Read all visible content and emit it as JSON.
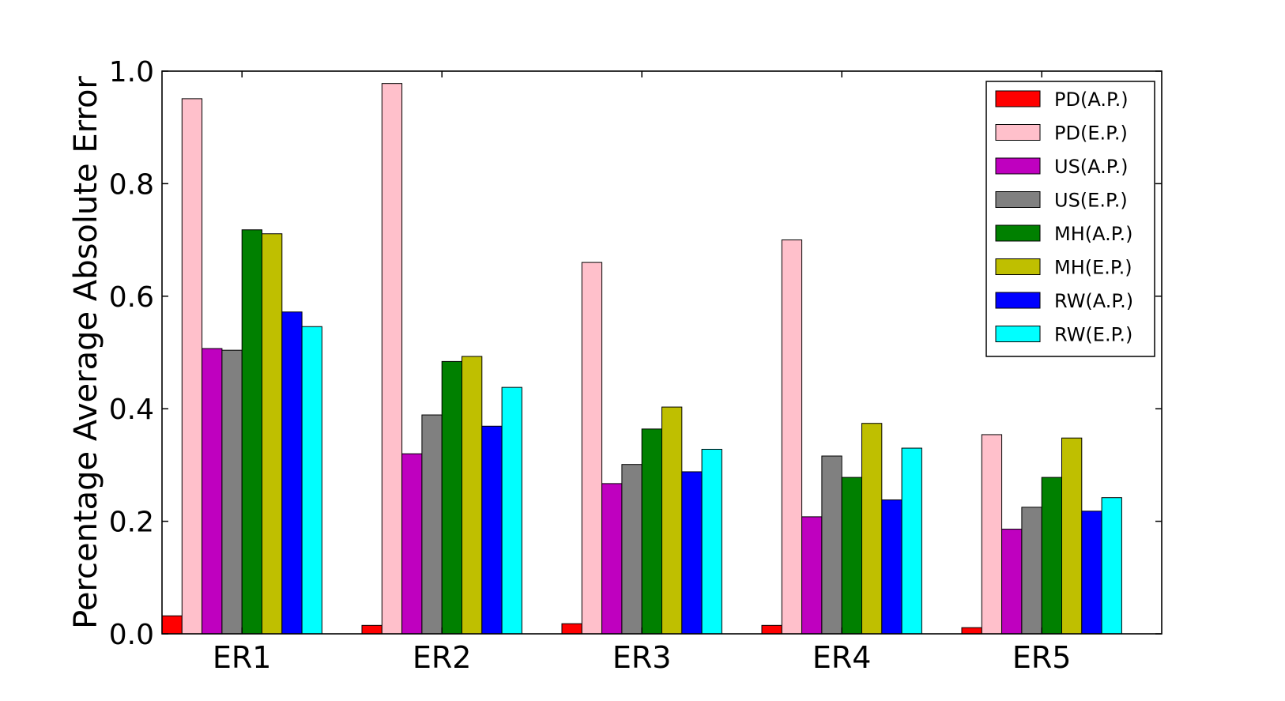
{
  "chart_data": {
    "type": "bar",
    "xlabel": "",
    "ylabel": "Percentage Average Absolute Error",
    "ylim": [
      0.0,
      1.0
    ],
    "yticks": [
      "0.0",
      "0.2",
      "0.4",
      "0.6",
      "0.8",
      "1.0"
    ],
    "grid": false,
    "legend_position": "top-right",
    "categories": [
      "ER1",
      "ER2",
      "ER3",
      "ER4",
      "ER5"
    ],
    "series": [
      {
        "name": "PD(A.P.)",
        "color": "#ff0000",
        "values": [
          0.032,
          0.015,
          0.018,
          0.015,
          0.011
        ]
      },
      {
        "name": "PD(E.P.)",
        "color": "#ffc0cb",
        "values": [
          0.951,
          0.978,
          0.66,
          0.7,
          0.354
        ]
      },
      {
        "name": "US(A.P.)",
        "color": "#bf00bf",
        "values": [
          0.507,
          0.32,
          0.267,
          0.208,
          0.186
        ]
      },
      {
        "name": "US(E.P.)",
        "color": "#808080",
        "values": [
          0.504,
          0.389,
          0.301,
          0.316,
          0.225
        ]
      },
      {
        "name": "MH(A.P.)",
        "color": "#008000",
        "values": [
          0.718,
          0.484,
          0.364,
          0.278,
          0.278
        ]
      },
      {
        "name": "MH(E.P.)",
        "color": "#bfbf00",
        "values": [
          0.711,
          0.493,
          0.403,
          0.374,
          0.348
        ]
      },
      {
        "name": "RW(A.P.)",
        "color": "#0000ff",
        "values": [
          0.572,
          0.369,
          0.288,
          0.238,
          0.218
        ]
      },
      {
        "name": "RW(E.P.)",
        "color": "#00ffff",
        "values": [
          0.546,
          0.438,
          0.328,
          0.33,
          0.242
        ]
      }
    ]
  }
}
